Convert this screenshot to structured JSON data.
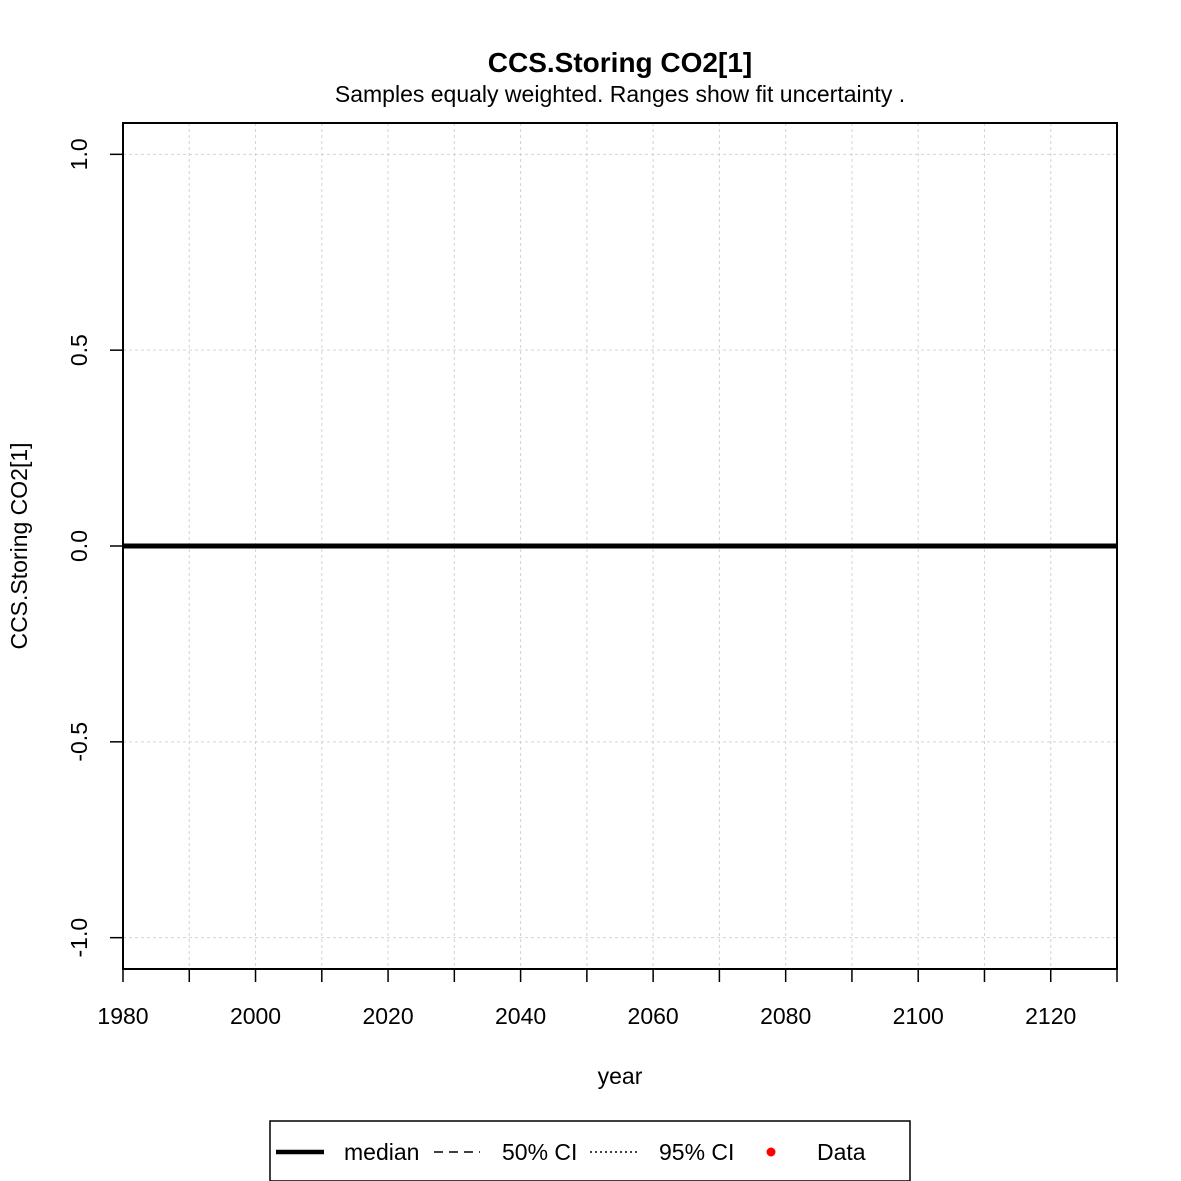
{
  "chart_data": {
    "type": "line",
    "title": "CCS.Storing CO2[1]",
    "subtitle": "Samples equaly weighted. Ranges show  fit uncertainty .",
    "xlabel": "year",
    "ylabel": "CCS.Storing CO2[1]",
    "xlim": [
      1980,
      2130
    ],
    "ylim": [
      -1.08,
      1.08
    ],
    "x_ticks": [
      1980,
      1990,
      2000,
      2010,
      2020,
      2030,
      2040,
      2050,
      2060,
      2070,
      2080,
      2090,
      2100,
      2110,
      2120,
      2130
    ],
    "x_tick_labels": [
      "1980",
      "",
      "2000",
      "",
      "2020",
      "",
      "2040",
      "",
      "2060",
      "",
      "2080",
      "",
      "2100",
      "",
      "2120",
      ""
    ],
    "y_ticks": [
      -1.0,
      -0.5,
      0.0,
      0.5,
      1.0
    ],
    "y_tick_labels": [
      "-1.0",
      "-0.5",
      "0.0",
      "0.5",
      "1.0"
    ],
    "grid": true,
    "legend_position": "bottom",
    "series": [
      {
        "name": "median",
        "style": "solid",
        "color": "#000000",
        "x": [
          1980,
          2130
        ],
        "y": [
          0,
          0
        ]
      }
    ],
    "legend": [
      {
        "label": "median",
        "style": "solid"
      },
      {
        "label": "50% CI",
        "style": "dashed"
      },
      {
        "label": "95% CI",
        "style": "dotted"
      },
      {
        "label": "Data",
        "style": "point",
        "color": "#ff0000"
      }
    ]
  }
}
